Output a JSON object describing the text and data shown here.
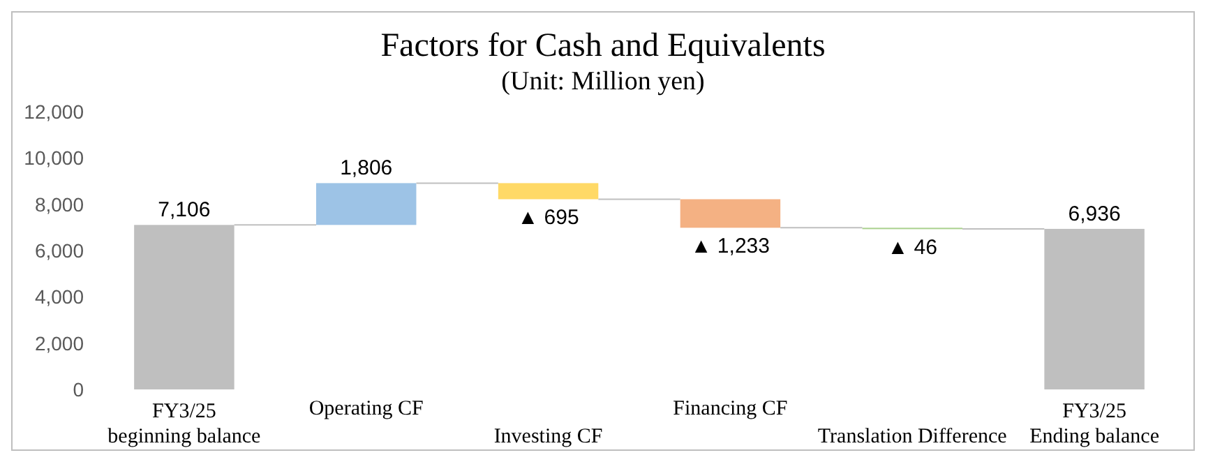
{
  "chart_data": {
    "type": "bar",
    "title": "Factors for Cash and Equivalents",
    "subtitle": "(Unit: Million yen)",
    "categories": [
      "FY3/25\nbeginning balance",
      "Operating CF",
      "Investing CF",
      "Financing CF",
      "Translation Difference",
      "FY3/25\nEnding balance"
    ],
    "values": [
      7106,
      1806,
      -695,
      -1233,
      -46,
      6936
    ],
    "base": [
      0,
      7106,
      8912,
      8217,
      6984,
      0
    ],
    "colors": [
      "#bfbfbf",
      "#9dc3e6",
      "#ffd966",
      "#f4b183",
      "#a9d18e",
      "#bfbfbf"
    ],
    "value_labels": [
      "7,106",
      "1,806",
      "▲ 695",
      "▲ 1,233",
      "▲ 46",
      "6,936"
    ],
    "ylim": [
      0,
      12000
    ],
    "yticks": [
      0,
      {
        "value": 2000,
        "label": "2,000"
      },
      {
        "value": 4000,
        "label": "4,000"
      },
      {
        "value": 6000,
        "label": "6,000"
      },
      {
        "value": 8000,
        "label": "8,000"
      },
      {
        "value": 10000,
        "label": "10,000"
      },
      {
        "value": 12000,
        "label": "12,000"
      }
    ]
  }
}
